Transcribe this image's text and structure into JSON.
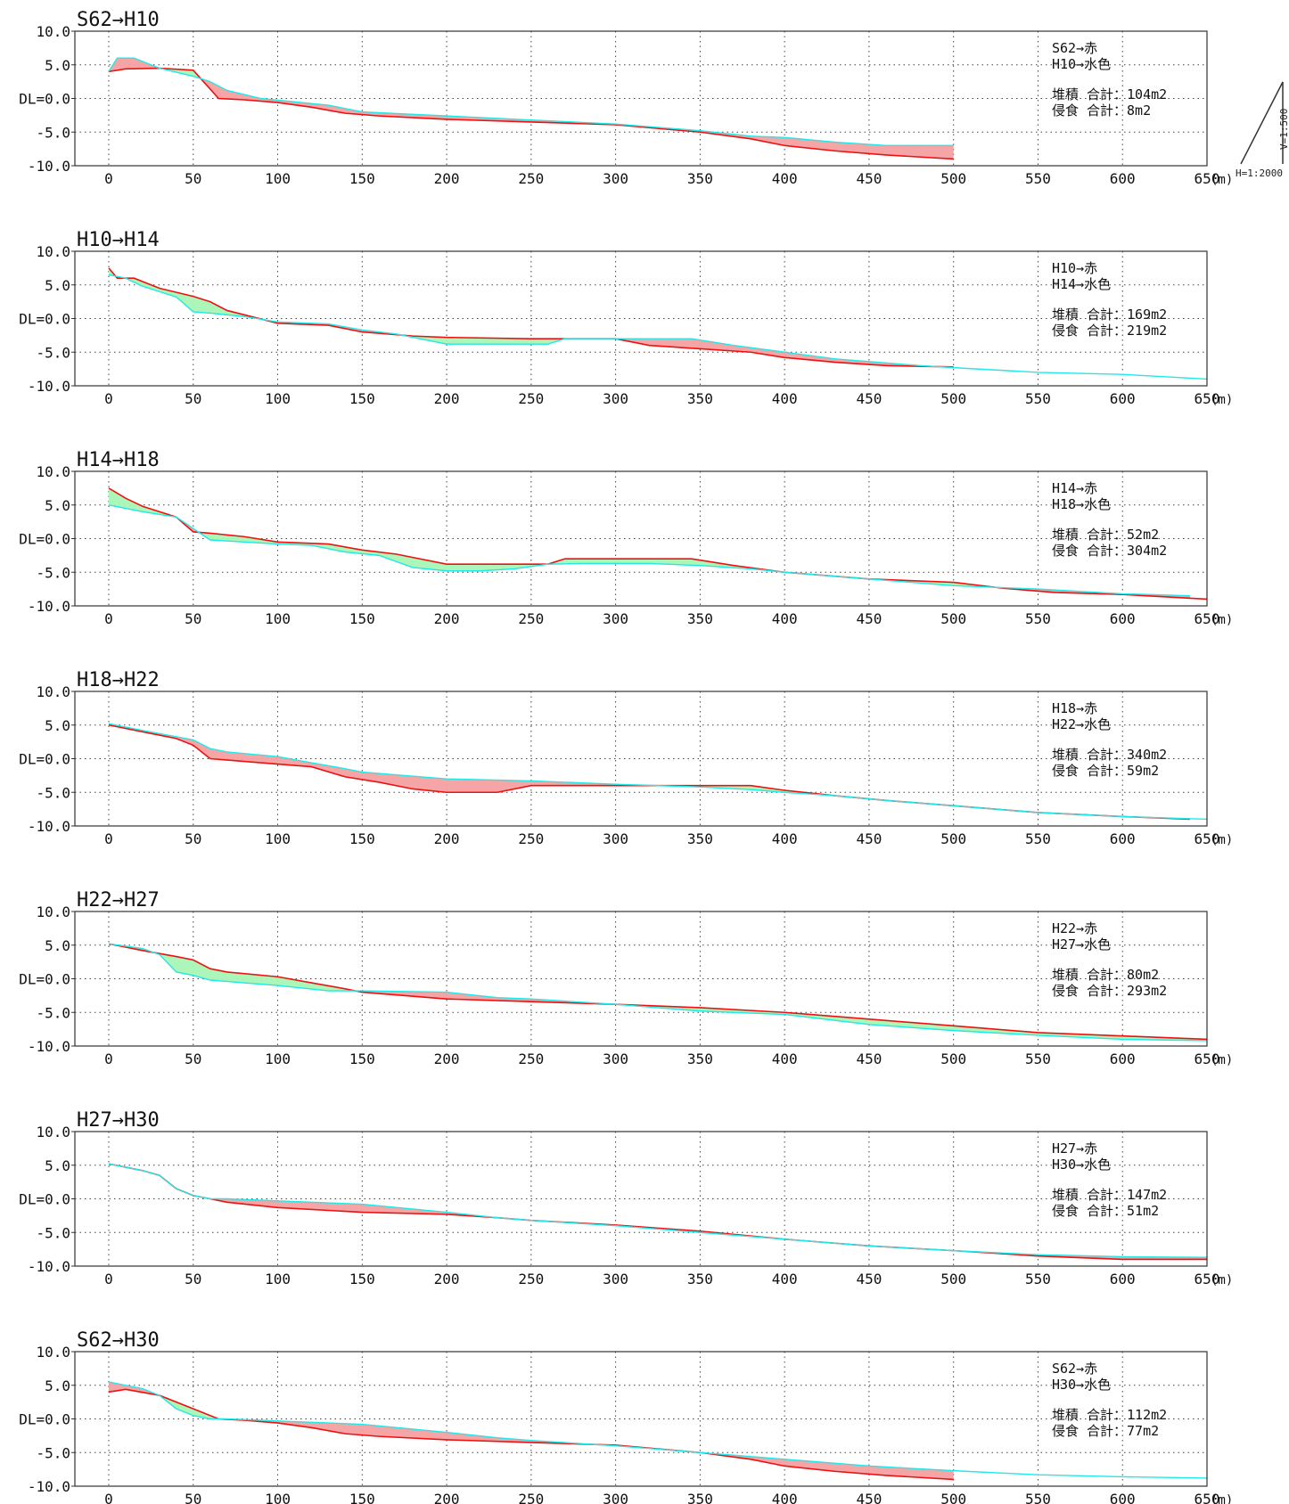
{
  "common": {
    "y_ticks": [
      10,
      5,
      0,
      -5,
      -10
    ],
    "y_tick_labels": [
      "10.0",
      "5.0",
      "DL=0.0",
      "-5.0",
      "-10.0"
    ],
    "x_ticks": [
      0,
      50,
      100,
      150,
      200,
      250,
      300,
      350,
      400,
      450,
      500,
      550,
      600,
      650
    ],
    "x_tick_labels": [
      "0",
      "50",
      "100",
      "150",
      "200",
      "250",
      "300",
      "350",
      "400",
      "450",
      "500",
      "550",
      "600",
      "650"
    ],
    "x_unit": "(m)",
    "xlim": [
      0,
      650
    ],
    "ylim": [
      -10,
      10
    ],
    "colors": {
      "before": "#ee1111",
      "after": "#22e8e8",
      "deposition_fill": "#f4a0a0",
      "erosion_fill": "#a6f5b4",
      "grid": "#444444",
      "frame": "#333333",
      "outline_dark": "#8a2a00"
    }
  },
  "scale_note": {
    "horizontal": "H=1:2000",
    "vertical": "V=1:500"
  },
  "chart_data": [
    {
      "type": "area",
      "title": "S62→H10",
      "legend": [
        "S62→赤",
        "H10→水色"
      ],
      "summary": [
        "堆積 合計：104m2",
        "侵食 合計：8m2"
      ],
      "series": [
        {
          "name": "S62",
          "x": [
            0,
            10,
            30,
            50,
            65,
            80,
            100,
            120,
            140,
            160,
            200,
            250,
            300,
            350,
            380,
            400,
            430,
            460,
            500
          ],
          "y": [
            4,
            4.4,
            4.5,
            4.2,
            0,
            -0.2,
            -0.6,
            -1.3,
            -2.2,
            -2.6,
            -3.1,
            -3.5,
            -3.9,
            -5,
            -6,
            -7,
            -7.8,
            -8.4,
            -9
          ]
        },
        {
          "name": "H10",
          "x": [
            0,
            5,
            15,
            30,
            50,
            60,
            70,
            90,
            110,
            130,
            150,
            200,
            250,
            300,
            350,
            380,
            400,
            430,
            460,
            500
          ],
          "y": [
            4,
            6,
            6,
            4.5,
            3.3,
            2.5,
            1.2,
            0,
            -0.5,
            -1,
            -2,
            -2.6,
            -3.2,
            -3.8,
            -4.8,
            -5.6,
            -5.8,
            -6.5,
            -7,
            -7
          ]
        }
      ]
    },
    {
      "type": "area",
      "title": "H10→H14",
      "legend": [
        "H10→赤",
        "H14→水色"
      ],
      "summary": [
        "堆積 合計：169m2",
        "侵食 合計：219m2"
      ],
      "series": [
        {
          "name": "H10",
          "x": [
            0,
            5,
            15,
            30,
            50,
            60,
            70,
            100,
            130,
            150,
            180,
            200,
            250,
            300,
            320,
            350,
            380,
            400,
            430,
            460,
            500
          ],
          "y": [
            7.5,
            6,
            6,
            4.5,
            3.3,
            2.5,
            1.2,
            -0.7,
            -1,
            -2,
            -2.6,
            -2.8,
            -3,
            -3,
            -4,
            -4.5,
            -5,
            -5.8,
            -6.5,
            -7,
            -7.2
          ]
        },
        {
          "name": "H14",
          "x": [
            0,
            10,
            20,
            40,
            50,
            60,
            80,
            100,
            130,
            150,
            170,
            200,
            230,
            260,
            270,
            280,
            300,
            320,
            345,
            370,
            400,
            430,
            460,
            480,
            500,
            550,
            600,
            650
          ],
          "y": [
            6.5,
            6,
            4.8,
            3.2,
            1,
            0.8,
            0.3,
            -0.5,
            -0.8,
            -1.7,
            -2.3,
            -3.8,
            -3.8,
            -3.8,
            -3,
            -3,
            -3,
            -3,
            -3,
            -4,
            -5,
            -6,
            -6.6,
            -7,
            -7.3,
            -8,
            -8.3,
            -9
          ]
        }
      ]
    },
    {
      "type": "area",
      "title": "H14→H18",
      "legend": [
        "H14→赤",
        "H18→水色"
      ],
      "summary": [
        "堆積 合計：52m2",
        "侵食 合計：304m2"
      ],
      "series": [
        {
          "name": "H14",
          "x": [
            0,
            10,
            20,
            40,
            50,
            60,
            80,
            100,
            130,
            150,
            170,
            200,
            230,
            260,
            270,
            280,
            300,
            320,
            345,
            370,
            400,
            450,
            500,
            530,
            560,
            600,
            650
          ],
          "y": [
            7.5,
            6,
            4.8,
            3.2,
            1,
            0.8,
            0.3,
            -0.5,
            -0.8,
            -1.7,
            -2.3,
            -3.8,
            -3.8,
            -3.8,
            -3,
            -3,
            -3,
            -3,
            -3,
            -4,
            -5,
            -6,
            -6.5,
            -7.4,
            -8,
            -8.3,
            -9
          ]
        },
        {
          "name": "H18",
          "x": [
            0,
            10,
            20,
            40,
            50,
            60,
            80,
            100,
            120,
            140,
            160,
            180,
            200,
            220,
            240,
            260,
            280,
            300,
            320,
            350,
            380,
            400,
            450,
            500,
            550,
            600,
            640
          ],
          "y": [
            5,
            4.5,
            4,
            3.2,
            1.5,
            -0.2,
            -0.5,
            -0.8,
            -1,
            -2,
            -2.5,
            -4.3,
            -4.8,
            -4.8,
            -4.5,
            -3.8,
            -3.7,
            -3.7,
            -3.7,
            -4,
            -4.5,
            -5,
            -6,
            -7,
            -7.5,
            -8.2,
            -8.5
          ]
        }
      ]
    },
    {
      "type": "area",
      "title": "H18→H22",
      "legend": [
        "H18→赤",
        "H22→水色"
      ],
      "summary": [
        "堆積 合計：340m2",
        "侵食 合計：59m2"
      ],
      "series": [
        {
          "name": "H18",
          "x": [
            0,
            20,
            40,
            50,
            60,
            80,
            100,
            120,
            140,
            160,
            180,
            200,
            230,
            250,
            280,
            300,
            350,
            380,
            400,
            430,
            460,
            500,
            550,
            600,
            640
          ],
          "y": [
            5,
            4,
            3,
            2,
            0,
            -0.4,
            -0.8,
            -1.2,
            -2.7,
            -3.5,
            -4.5,
            -5,
            -5,
            -4,
            -4,
            -4,
            -4,
            -4,
            -4.7,
            -5.5,
            -6.2,
            -7,
            -8,
            -8.6,
            -9
          ]
        },
        {
          "name": "H22",
          "x": [
            0,
            20,
            50,
            60,
            70,
            100,
            120,
            140,
            150,
            200,
            250,
            300,
            350,
            380,
            400,
            430,
            460,
            500,
            550,
            600,
            650
          ],
          "y": [
            5.2,
            4.2,
            2.8,
            1.5,
            1,
            0.3,
            -0.6,
            -1.5,
            -2,
            -3,
            -3.3,
            -3.8,
            -4.2,
            -4.6,
            -5,
            -5.5,
            -6.2,
            -7,
            -8,
            -8.6,
            -9
          ]
        }
      ]
    },
    {
      "type": "area",
      "title": "H22→H27",
      "legend": [
        "H22→赤",
        "H27→水色"
      ],
      "summary": [
        "堆積 合計：80m2",
        "侵食 合計：293m2"
      ],
      "series": [
        {
          "name": "H22",
          "x": [
            0,
            20,
            40,
            50,
            60,
            70,
            100,
            120,
            140,
            150,
            200,
            250,
            300,
            350,
            400,
            450,
            500,
            550,
            600,
            650
          ],
          "y": [
            5.2,
            4.2,
            3.3,
            2.8,
            1.5,
            1,
            0.3,
            -0.6,
            -1.5,
            -2,
            -3,
            -3.4,
            -3.8,
            -4.3,
            -5,
            -6,
            -7,
            -8,
            -8.5,
            -9
          ]
        },
        {
          "name": "H27",
          "x": [
            0,
            20,
            30,
            40,
            50,
            60,
            80,
            100,
            130,
            150,
            200,
            230,
            250,
            300,
            350,
            400,
            450,
            500,
            550,
            600,
            650
          ],
          "y": [
            5.2,
            4.5,
            3.6,
            1,
            0.5,
            -0.2,
            -0.6,
            -1,
            -1.8,
            -1.8,
            -2,
            -2.8,
            -3,
            -3.8,
            -4.8,
            -5.3,
            -6.8,
            -7.7,
            -8.4,
            -9,
            -9.2
          ]
        }
      ]
    },
    {
      "type": "area",
      "title": "H27→H30",
      "legend": [
        "H27→赤",
        "H30→水色"
      ],
      "summary": [
        "堆積 合計：147m2",
        "侵食 合計：51m2"
      ],
      "series": [
        {
          "name": "H27",
          "x": [
            0,
            20,
            30,
            40,
            50,
            60,
            70,
            100,
            150,
            200,
            230,
            250,
            300,
            350,
            400,
            450,
            500,
            550,
            600,
            650
          ],
          "y": [
            5.2,
            4.2,
            3.5,
            1.5,
            0.5,
            0,
            -0.5,
            -1.3,
            -2,
            -2.3,
            -2.8,
            -3.2,
            -3.9,
            -4.8,
            -6,
            -7,
            -7.7,
            -8.5,
            -9,
            -9
          ]
        },
        {
          "name": "H30",
          "x": [
            0,
            20,
            30,
            40,
            50,
            60,
            70,
            100,
            150,
            200,
            230,
            250,
            300,
            350,
            400,
            450,
            500,
            550,
            600,
            650
          ],
          "y": [
            5.2,
            4.2,
            3.5,
            1.5,
            0.5,
            0,
            0,
            -0.3,
            -0.8,
            -2,
            -2.8,
            -3.2,
            -4,
            -5,
            -6,
            -7,
            -7.7,
            -8.3,
            -8.6,
            -8.7
          ]
        }
      ]
    },
    {
      "type": "area",
      "title": "S62→H30",
      "legend": [
        "S62→赤",
        "H30→水色"
      ],
      "summary": [
        "堆積 合計：112m2",
        "侵食 合計：77m2"
      ],
      "series": [
        {
          "name": "S62",
          "x": [
            0,
            10,
            30,
            50,
            65,
            80,
            100,
            120,
            140,
            160,
            200,
            250,
            300,
            350,
            380,
            400,
            430,
            460,
            500
          ],
          "y": [
            4,
            4.4,
            3.5,
            1.5,
            0,
            -0.2,
            -0.6,
            -1.3,
            -2.2,
            -2.6,
            -3.1,
            -3.5,
            -3.9,
            -5,
            -6,
            -7,
            -7.8,
            -8.4,
            -9
          ]
        },
        {
          "name": "H30",
          "x": [
            0,
            10,
            20,
            30,
            40,
            50,
            60,
            70,
            100,
            150,
            200,
            230,
            250,
            300,
            350,
            400,
            450,
            500,
            550,
            600,
            650
          ],
          "y": [
            5.5,
            5,
            4.5,
            3.5,
            1.5,
            0.5,
            0,
            0,
            -0.3,
            -0.8,
            -2,
            -2.8,
            -3.2,
            -4,
            -5,
            -6,
            -7,
            -7.7,
            -8.3,
            -8.6,
            -8.8
          ]
        }
      ]
    }
  ]
}
